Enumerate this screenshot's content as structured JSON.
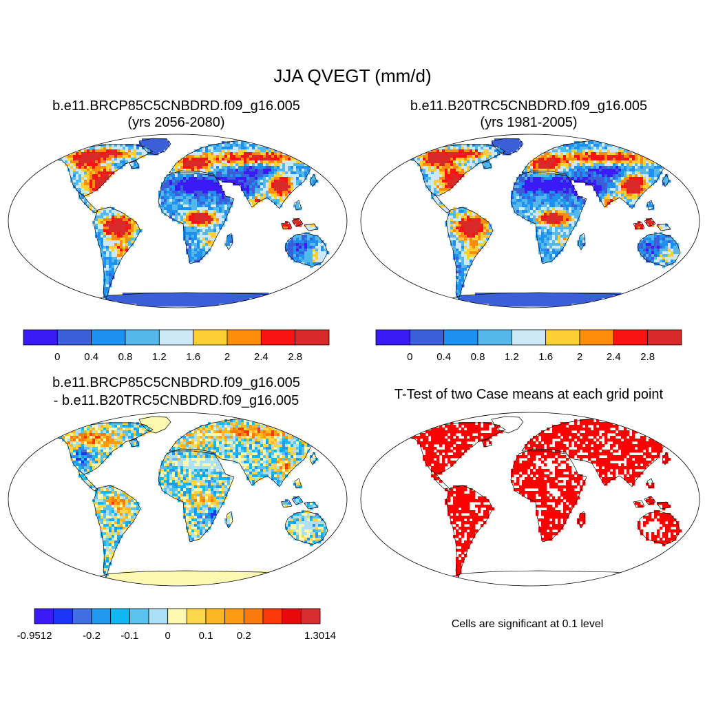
{
  "figure": {
    "title": "JJA QVEGT (mm/d)",
    "panels": [
      {
        "title_line1": "b.e11.BRCP85C5CNBDRD.f09_g16.005",
        "title_line2": "(yrs 2056-2080)",
        "kind": "field"
      },
      {
        "title_line1": "b.e11.B20TRC5CNBDRD.f09_g16.005",
        "title_line2": "(yrs 1981-2005)",
        "kind": "field"
      },
      {
        "title_line1": "b.e11.BRCP85C5CNBDRD.f09_g16.005",
        "title_line2": "- b.e11.B20TRC5CNBDRD.f09_g16.005",
        "kind": "difference"
      },
      {
        "title_line1": "T-Test of two Case means at each grid point",
        "kind": "significance"
      }
    ],
    "note": "Cells are significant at 0.1 level"
  },
  "legends": {
    "field": {
      "colors": [
        "#3a1bf5",
        "#3a5fd9",
        "#1e90f0",
        "#55b8ec",
        "#cde8f7",
        "#fcd034",
        "#fc8c0a",
        "#fb1313",
        "#d92a2a"
      ],
      "labels": [
        "0",
        "0.4",
        "0.8",
        "1.2",
        "1.6",
        "2",
        "2.4",
        "2.8"
      ]
    },
    "diff": {
      "colors": [
        "#3a1bf5",
        "#1b36f7",
        "#3f6fe0",
        "#1f98ee",
        "#10b8f2",
        "#5bc2ed",
        "#aee0f5",
        "#fef9b0",
        "#fcd74c",
        "#fcb822",
        "#fc9a12",
        "#fb7a0c",
        "#fb3a0a",
        "#e60a0a",
        "#d62e2e"
      ],
      "labels": [
        "-0.9512",
        "-0.2",
        "-0.1",
        "0",
        "0.1",
        "0.2",
        "1.3014"
      ]
    }
  },
  "colors": {
    "ocean": "#ffffff",
    "border": "#000000",
    "significant": "#ff0000"
  }
}
